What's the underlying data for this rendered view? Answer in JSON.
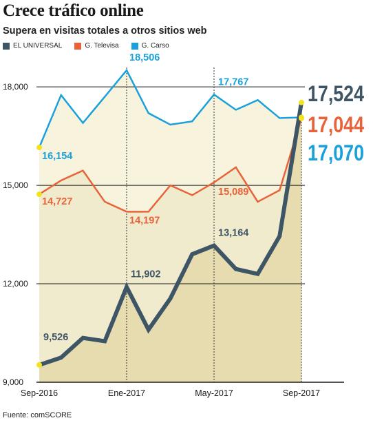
{
  "title": "Crece tráfico online",
  "subtitle": "Supera en visitas totales a otros sitios web",
  "source": "Fuente: comSCORE",
  "chart_data": {
    "type": "line",
    "x": [
      "Sep-2016",
      "Oct-2016",
      "Nov-2016",
      "Dic-2016",
      "Ene-2017",
      "Feb-2017",
      "Mar-2017",
      "Abr-2017",
      "May-2017",
      "Jun-2017",
      "Jul-2017",
      "Ago-2017",
      "Sep-2017"
    ],
    "x_tick_labels": [
      "Sep-2016",
      "Ene-2017",
      "May-2017",
      "Sep-2017"
    ],
    "ylim": [
      9000,
      18800
    ],
    "y_ticks": [
      9000,
      12000,
      15000,
      18000
    ],
    "y_tick_labels": [
      "9,000",
      "12,000",
      "15,000",
      "18,000"
    ],
    "grid": true,
    "legend_position": "top-left",
    "series": [
      {
        "name": "EL UNIVERSAL",
        "color": "#3e5566",
        "values": [
          9526,
          9750,
          10350,
          10250,
          11902,
          10600,
          11550,
          12900,
          13164,
          12450,
          12300,
          13450,
          17524
        ],
        "labels": [
          {
            "index": 0,
            "text": "9,526"
          },
          {
            "index": 4,
            "text": "11,902"
          },
          {
            "index": 8,
            "text": "13,164"
          }
        ],
        "end_label": "17,524"
      },
      {
        "name": "G. Televisa",
        "color": "#e8623a",
        "values": [
          14727,
          15150,
          15450,
          14500,
          14197,
          14197,
          15000,
          14700,
          15089,
          15550,
          14500,
          14850,
          17044
        ],
        "labels": [
          {
            "index": 0,
            "text": "14,727"
          },
          {
            "index": 4,
            "text": "14,197"
          },
          {
            "index": 8,
            "text": "15,089"
          }
        ],
        "end_label": "17,044"
      },
      {
        "name": "G. Carso",
        "color": "#1aa1dc",
        "values": [
          16154,
          17750,
          16900,
          17700,
          18506,
          17200,
          16850,
          16950,
          17767,
          17300,
          17600,
          17050,
          17070
        ],
        "labels": [
          {
            "index": 0,
            "text": "16,154"
          },
          {
            "index": 4,
            "text": "18,506"
          },
          {
            "index": 8,
            "text": "17,767"
          }
        ],
        "end_label": "17,070"
      }
    ]
  }
}
